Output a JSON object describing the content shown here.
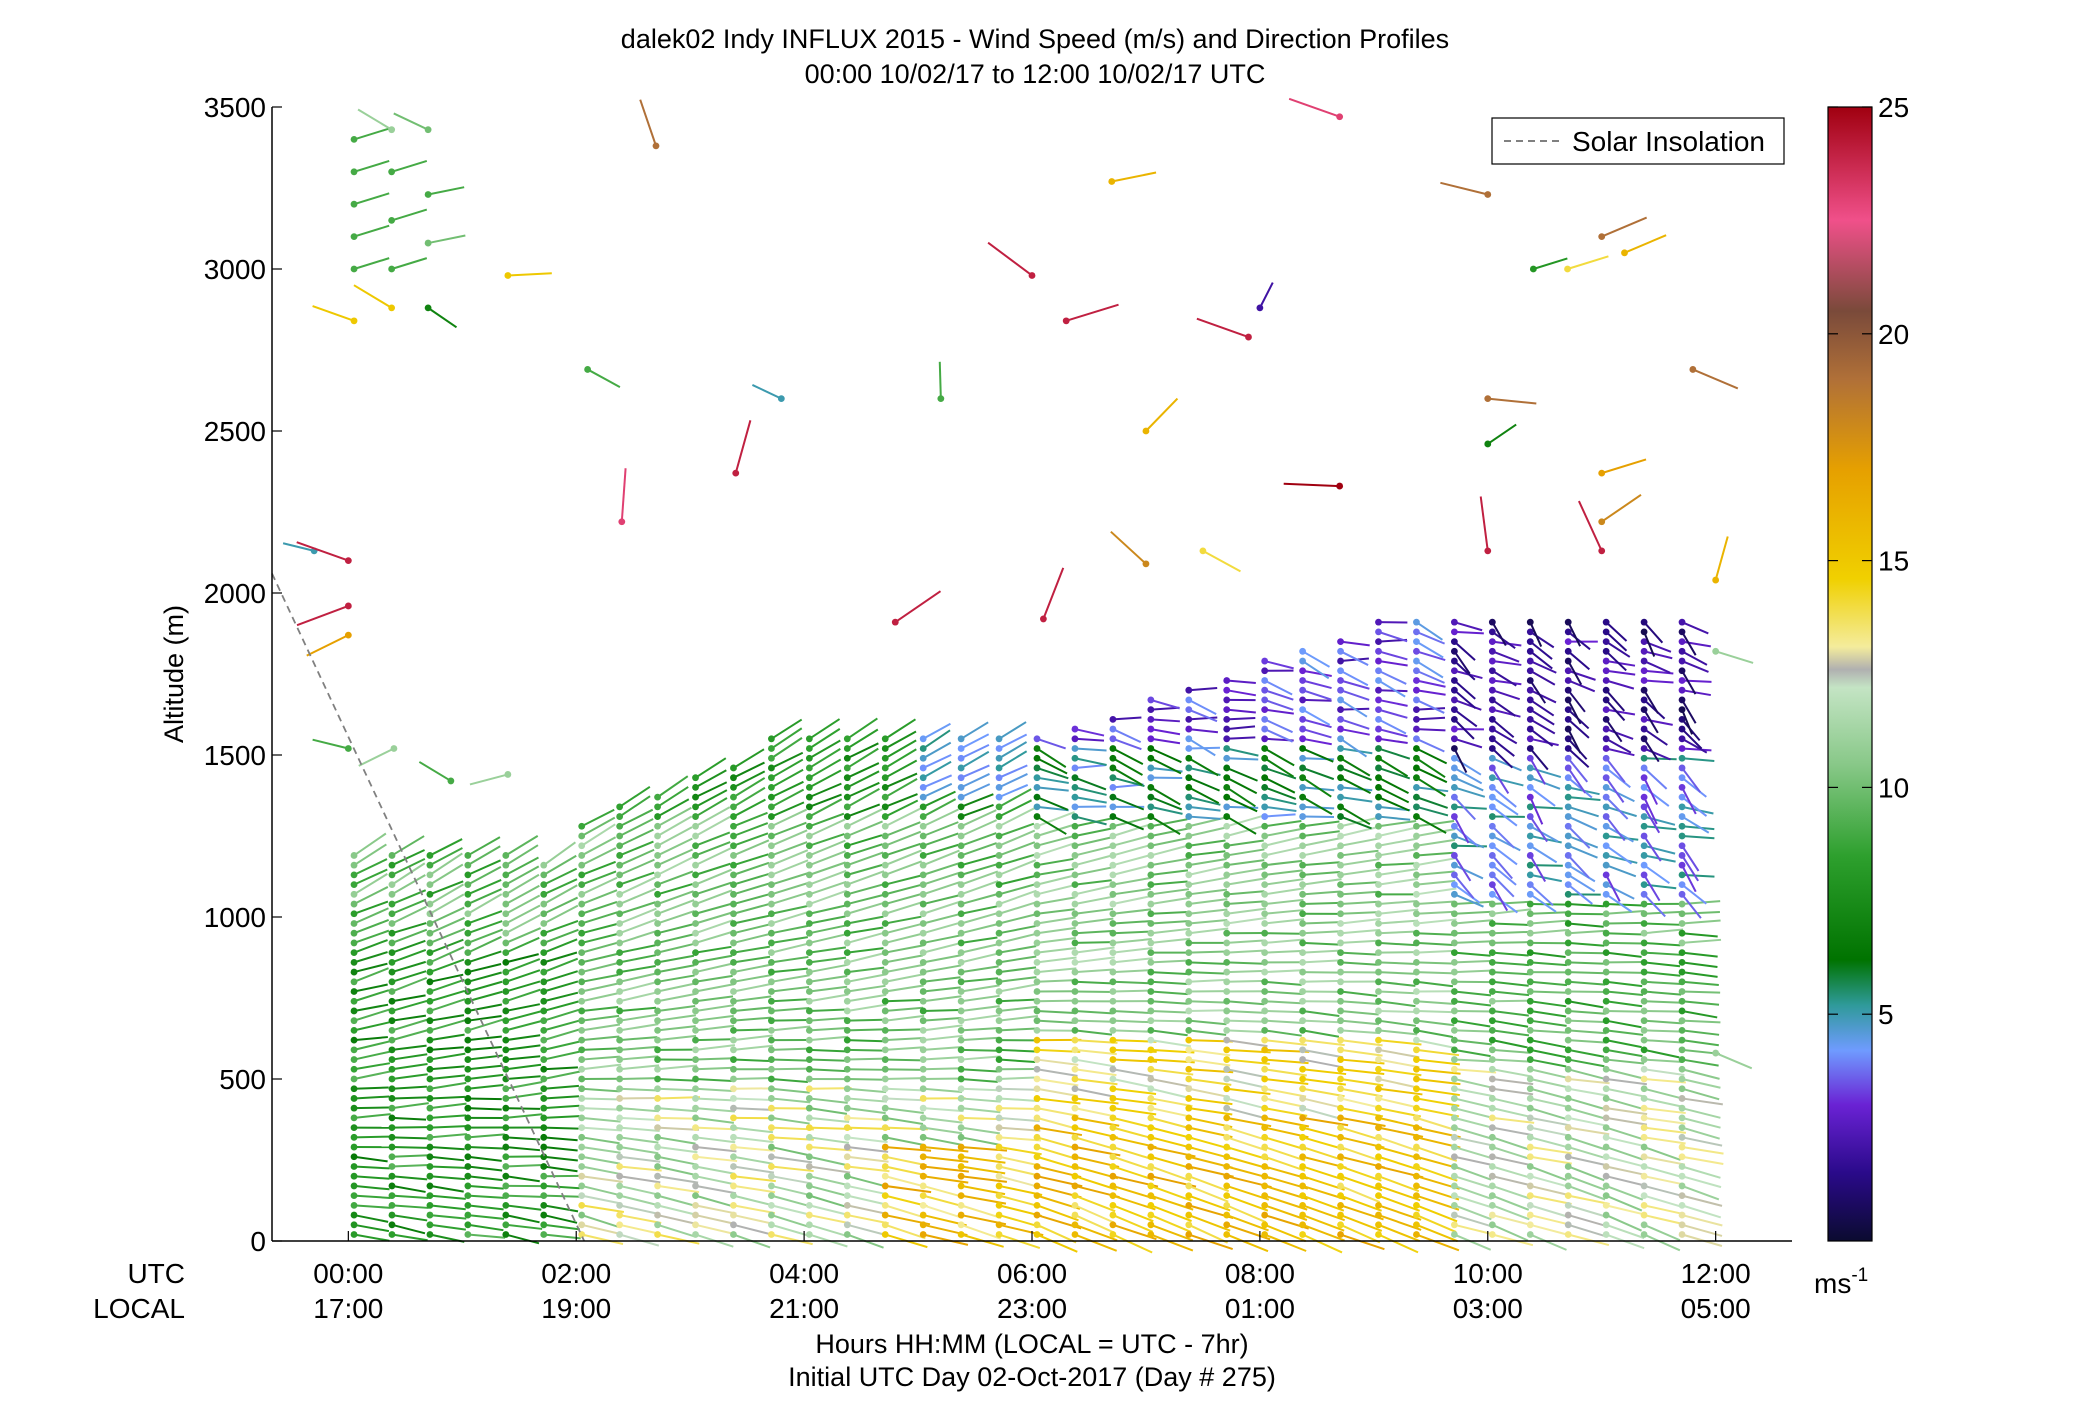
{
  "chart_data": {
    "type": "scatter",
    "subtype": "wind-barb-profile",
    "title": "dalek02 Indy INFLUX 2015 - Wind Speed (m/s) and Direction Profiles",
    "subtitle": "00:00 10/02/17 to 12:00 10/02/17  UTC",
    "ylabel": "Altitude (m)",
    "xlabel": "Hours HH:MM  (LOCAL = UTC - 7hr)",
    "xlabel2": "Initial UTC Day 02-Oct-2017 (Day # 275)",
    "utc_row_label": "UTC",
    "local_row_label": "LOCAL",
    "xlim": [
      -0.67,
      12.67
    ],
    "ylim": [
      0,
      3500
    ],
    "x_ticks": [
      {
        "utc": "00:00",
        "local": "17:00",
        "value": 0
      },
      {
        "utc": "02:00",
        "local": "19:00",
        "value": 2
      },
      {
        "utc": "04:00",
        "local": "21:00",
        "value": 4
      },
      {
        "utc": "06:00",
        "local": "23:00",
        "value": 6
      },
      {
        "utc": "08:00",
        "local": "01:00",
        "value": 8
      },
      {
        "utc": "10:00",
        "local": "03:00",
        "value": 10
      },
      {
        "utc": "12:00",
        "local": "05:00",
        "value": 12
      }
    ],
    "y_ticks": [
      "0",
      "500",
      "1000",
      "1500",
      "2000",
      "2500",
      "3000",
      "3500"
    ],
    "legend": {
      "label": "Solar Insolation",
      "style": "dashed",
      "color": "#808080",
      "position": "top-right"
    },
    "solar_insolation_line": [
      [
        -0.67,
        2060
      ],
      [
        2.07,
        0
      ]
    ],
    "colorbar": {
      "unit": "ms",
      "unit_exp": "-1",
      "range": [
        0,
        25
      ],
      "ticks": [
        "5",
        "10",
        "15",
        "20",
        "25"
      ],
      "stops": [
        {
          "v": 0,
          "c": "#0b0b30"
        },
        {
          "v": 1.5,
          "c": "#2a0a8a"
        },
        {
          "v": 3,
          "c": "#6a22d4"
        },
        {
          "v": 4.2,
          "c": "#6f9bff"
        },
        {
          "v": 5.2,
          "c": "#2f9a9a"
        },
        {
          "v": 6.2,
          "c": "#007300"
        },
        {
          "v": 8.5,
          "c": "#2ea02e"
        },
        {
          "v": 10.5,
          "c": "#88c888"
        },
        {
          "v": 12.2,
          "c": "#c4e4c4"
        },
        {
          "v": 12.6,
          "c": "#b0b0b0"
        },
        {
          "v": 13.1,
          "c": "#f4ec9c"
        },
        {
          "v": 14.6,
          "c": "#f0d000"
        },
        {
          "v": 17,
          "c": "#e6a000"
        },
        {
          "v": 19,
          "c": "#b07038"
        },
        {
          "v": 20.5,
          "c": "#7a4a3a"
        },
        {
          "v": 22.5,
          "c": "#f0508a"
        },
        {
          "v": 25,
          "c": "#a00010"
        }
      ]
    },
    "profiles": {
      "time_step_h": 0.333,
      "first_profile_h": 0.05,
      "last_profile_h": 12.0,
      "gate_spacing_m": 30,
      "description_of_regimes": [
        {
          "time_range": [
            0,
            2
          ],
          "speed_ms": 8,
          "top_m": 1200,
          "direction_deg": 235
        },
        {
          "time_range": [
            2,
            6
          ],
          "speed_ms": 10,
          "top_m": 1550,
          "direction_deg": 240
        },
        {
          "time_range": [
            6,
            9.5
          ],
          "speed_ms": 13,
          "top_m": 1900,
          "direction_deg": 250
        },
        {
          "time_range": [
            9.5,
            12
          ],
          "speed_ms": 11,
          "top_m": 1900,
          "direction_deg": 270
        }
      ]
    }
  }
}
